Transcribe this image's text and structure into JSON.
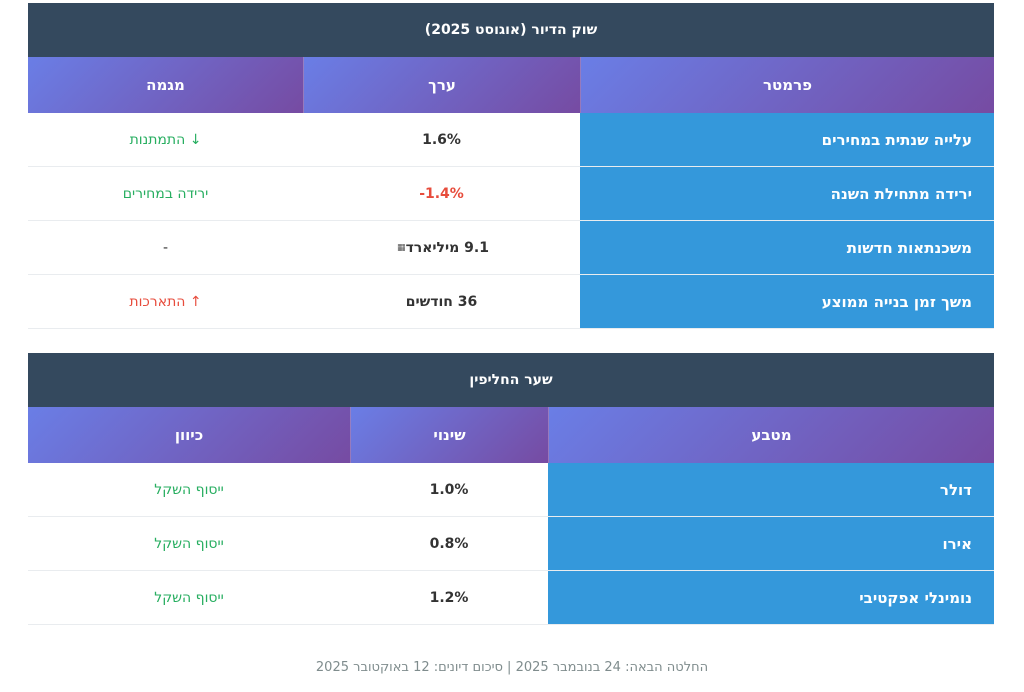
{
  "housing": {
    "title": "שוק הדיור (אוגוסט 2025)",
    "headers": [
      "פרמטר",
      "ערך",
      "מגמה"
    ],
    "rows": [
      {
        "param": "עלייה שנתית במחירים",
        "value": "1.6%",
        "trend": "↓ התמתנות"
      },
      {
        "param": "ירידה מתחילת השנה",
        "value": "-1.4%",
        "trend": "ירידה במחירים"
      },
      {
        "param": "משכנתאות חדשות",
        "value": "9.1 מיליארד",
        "trend": "-"
      },
      {
        "param": "משך זמן בנייה ממוצע",
        "value": "36 חודשים",
        "trend": "↑ התארכות"
      }
    ],
    "icon": "building-icon"
  },
  "fx": {
    "title": "שער החליפין",
    "headers": [
      "מטבע",
      "שינוי",
      "כיוון"
    ],
    "rows": [
      {
        "currency": "דולר",
        "change": "1.0%",
        "direction": "ייסוף השקל"
      },
      {
        "currency": "אירו",
        "change": "0.8%",
        "direction": "ייסוף השקל"
      },
      {
        "currency": "נומינלי אפקטיבי",
        "change": "1.2%",
        "direction": "ייסוף השקל"
      }
    ]
  },
  "footer": "החלטה הבאה: 24 בנובמבר 2025 | סיכום דיונים: 12 באוקטובר 2025",
  "colors": {
    "caption_bg": "#34495e",
    "header_gradient_start": "#6a7ee6",
    "header_gradient_end": "#764ba2",
    "param_bg": "#3498db",
    "positive": "#27ae60",
    "negative": "#e74c3c"
  }
}
